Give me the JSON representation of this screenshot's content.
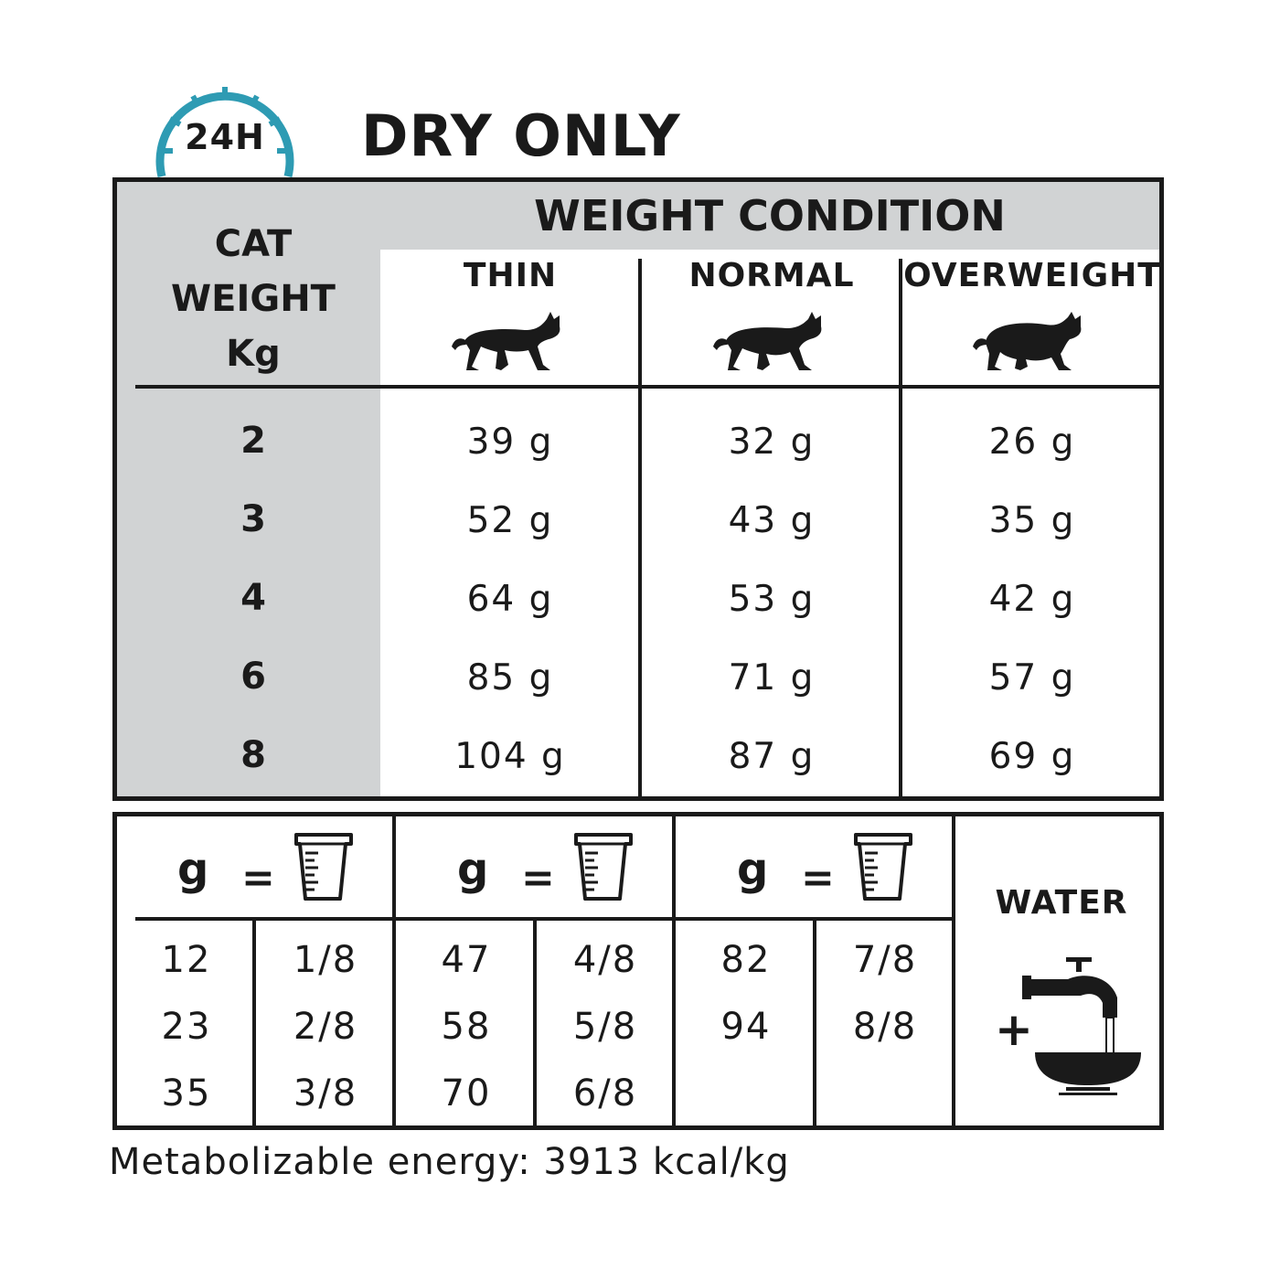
{
  "header": {
    "badge_text": "24H",
    "title": "DRY ONLY"
  },
  "colors": {
    "badge_teal": "#2e9bb3",
    "header_grey": "#d1d3d4",
    "ink": "#1a1a1a"
  },
  "feeding_table": {
    "row_header_lines": [
      "CAT",
      "WEIGHT",
      "Kg"
    ],
    "group_header": "WEIGHT CONDITION",
    "columns": [
      {
        "label": "THIN",
        "icon": "thin-cat-icon"
      },
      {
        "label": "NORMAL",
        "icon": "normal-cat-icon"
      },
      {
        "label": "OVERWEIGHT",
        "icon": "overweight-cat-icon"
      }
    ],
    "rows": [
      {
        "weight": "2",
        "thin": "39 g",
        "normal": "32 g",
        "overweight": "26 g"
      },
      {
        "weight": "3",
        "thin": "52 g",
        "normal": "43 g",
        "overweight": "35 g"
      },
      {
        "weight": "4",
        "thin": "64 g",
        "normal": "53 g",
        "overweight": "42 g"
      },
      {
        "weight": "6",
        "thin": "85 g",
        "normal": "71 g",
        "overweight": "57 g"
      },
      {
        "weight": "8",
        "thin": "104 g",
        "normal": "87 g",
        "overweight": "69 g"
      }
    ]
  },
  "conversion_table": {
    "g_label": "g",
    "equals": "=",
    "cup_icon": "measuring-cup-icon",
    "groups": [
      {
        "rows": [
          [
            "12",
            "1/8"
          ],
          [
            "23",
            "2/8"
          ],
          [
            "35",
            "3/8"
          ]
        ]
      },
      {
        "rows": [
          [
            "47",
            "4/8"
          ],
          [
            "58",
            "5/8"
          ],
          [
            "70",
            "6/8"
          ]
        ]
      },
      {
        "rows": [
          [
            "82",
            "7/8"
          ],
          [
            "94",
            "8/8"
          ]
        ]
      }
    ],
    "water_label": "WATER",
    "plus": "+",
    "water_icon": "tap-water-bowl-icon"
  },
  "footer": {
    "energy": "Metabolizable energy: 3913 kcal/kg"
  }
}
